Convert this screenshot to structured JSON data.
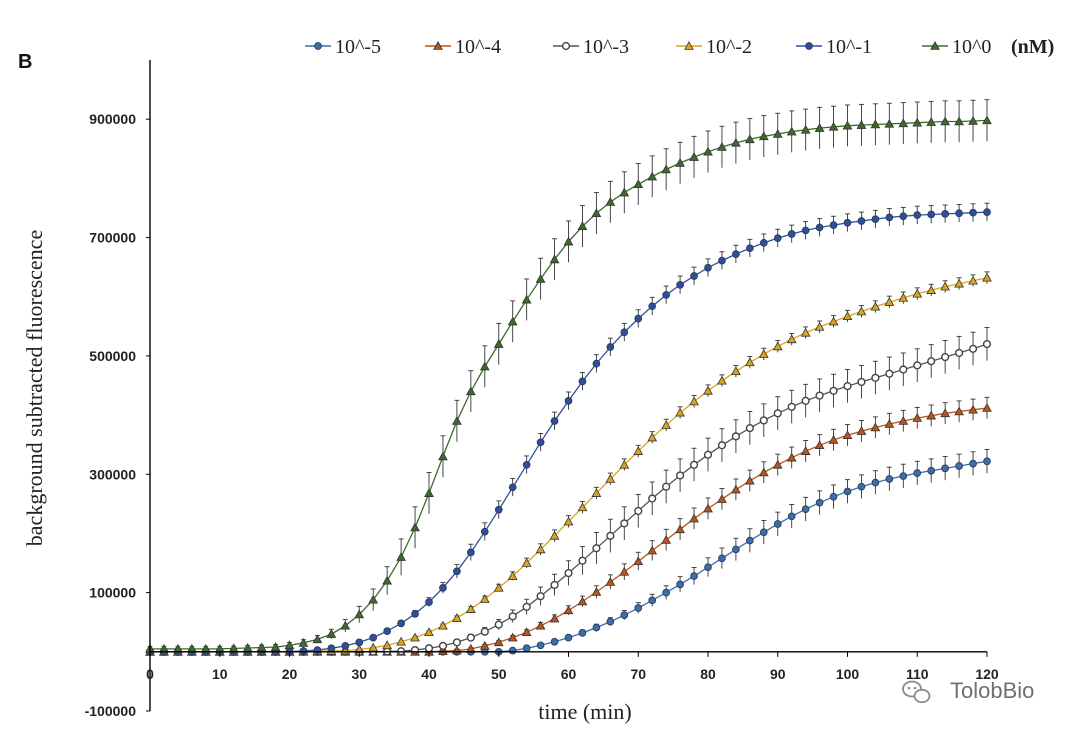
{
  "panel_label": "B",
  "watermark": {
    "text": "TolobBio",
    "icon": "wechat-icon"
  },
  "chart_data": {
    "type": "line",
    "title": "",
    "xlabel": "time (min)",
    "ylabel": "background subtracted fluorescence",
    "legend_unit": "(nM)",
    "legend_position": "top",
    "grid": false,
    "xlim": [
      0,
      120
    ],
    "ylim": [
      -100000,
      1000000
    ],
    "x_ticks": [
      0,
      10,
      20,
      30,
      40,
      50,
      60,
      70,
      80,
      90,
      100,
      110,
      120
    ],
    "x_tick_labels": [
      "0",
      "10",
      "20",
      "30",
      "40",
      "50",
      "60",
      "70",
      "80",
      "90",
      "100",
      "110",
      "120"
    ],
    "y_ticks": [
      -100000,
      100000,
      300000,
      500000,
      700000,
      900000
    ],
    "y_tick_labels": [
      "-100000",
      "100000",
      "300000",
      "500000",
      "700000",
      "900000"
    ],
    "x_step": 2,
    "series": [
      {
        "name": "10^-5",
        "color": "#3c6fa8",
        "marker": "circle",
        "x": [
          0,
          10,
          20,
          30,
          40,
          50,
          52,
          54,
          56,
          58,
          60,
          62,
          64,
          66,
          68,
          70,
          72,
          74,
          76,
          78,
          80,
          82,
          84,
          86,
          88,
          90,
          92,
          94,
          96,
          98,
          100,
          102,
          104,
          106,
          108,
          110,
          112,
          114,
          116,
          118,
          120
        ],
        "y": [
          0,
          0,
          0,
          0,
          0,
          0,
          2000,
          6000,
          11000,
          17000,
          24000,
          32000,
          41000,
          51000,
          62000,
          74000,
          87000,
          100000,
          114000,
          128000,
          143000,
          158000,
          173000,
          188000,
          202000,
          216000,
          229000,
          241000,
          252000,
          262000,
          271000,
          279000,
          286000,
          292000,
          297000,
          302000,
          306000,
          310000,
          314000,
          318000,
          322000
        ],
        "error": 20000
      },
      {
        "name": "10^-4",
        "color": "#b8551f",
        "marker": "triangle",
        "x": [
          0,
          10,
          20,
          30,
          40,
          44,
          46,
          48,
          50,
          52,
          54,
          56,
          58,
          60,
          62,
          64,
          66,
          68,
          70,
          72,
          74,
          76,
          78,
          80,
          82,
          84,
          86,
          88,
          90,
          92,
          94,
          96,
          98,
          100,
          102,
          104,
          106,
          108,
          110,
          112,
          114,
          116,
          118,
          120
        ],
        "y": [
          0,
          0,
          0,
          0,
          0,
          2000,
          5000,
          10000,
          16000,
          24000,
          33000,
          44000,
          56000,
          70000,
          85000,
          101000,
          118000,
          135000,
          153000,
          171000,
          189000,
          207000,
          225000,
          242000,
          258000,
          274000,
          289000,
          303000,
          316000,
          328000,
          339000,
          349000,
          358000,
          366000,
          373000,
          379000,
          385000,
          390000,
          395000,
          399000,
          403000,
          406000,
          409000,
          412000
        ],
        "error": 18000
      },
      {
        "name": "10^-3",
        "color": "#555555",
        "marker": "open-circle",
        "x": [
          0,
          10,
          20,
          30,
          36,
          38,
          40,
          42,
          44,
          46,
          48,
          50,
          52,
          54,
          56,
          58,
          60,
          62,
          64,
          66,
          68,
          70,
          72,
          74,
          76,
          78,
          80,
          82,
          84,
          86,
          88,
          90,
          92,
          94,
          96,
          98,
          100,
          102,
          104,
          106,
          108,
          110,
          112,
          114,
          116,
          118,
          120
        ],
        "y": [
          0,
          0,
          0,
          0,
          1000,
          3000,
          6000,
          10000,
          16000,
          24000,
          34000,
          46000,
          60000,
          76000,
          94000,
          113000,
          133000,
          154000,
          175000,
          196000,
          217000,
          238000,
          259000,
          279000,
          298000,
          316000,
          333000,
          349000,
          364000,
          378000,
          391000,
          403000,
          414000,
          424000,
          433000,
          441000,
          449000,
          456000,
          463000,
          470000,
          477000,
          484000,
          491000,
          498000,
          505000,
          512000,
          520000
        ],
        "error": 28000
      },
      {
        "name": "10^-2",
        "color": "#d9a520",
        "marker": "triangle",
        "x": [
          0,
          10,
          20,
          28,
          30,
          32,
          34,
          36,
          38,
          40,
          42,
          44,
          46,
          48,
          50,
          52,
          54,
          56,
          58,
          60,
          62,
          64,
          66,
          68,
          70,
          72,
          74,
          76,
          78,
          80,
          82,
          84,
          86,
          88,
          90,
          92,
          94,
          96,
          98,
          100,
          102,
          104,
          106,
          108,
          110,
          112,
          114,
          116,
          118,
          120
        ],
        "y": [
          0,
          0,
          0,
          2000,
          4000,
          7000,
          11000,
          17000,
          24000,
          33000,
          44000,
          57000,
          72000,
          89000,
          108000,
          128000,
          150000,
          173000,
          196000,
          220000,
          244000,
          268000,
          292000,
          316000,
          339000,
          362000,
          383000,
          404000,
          423000,
          441000,
          458000,
          474000,
          489000,
          503000,
          516000,
          528000,
          539000,
          549000,
          558000,
          567000,
          575000,
          583000,
          591000,
          598000,
          605000,
          611000,
          617000,
          622000,
          627000,
          632000
        ],
        "error": 10000
      },
      {
        "name": "10^-1",
        "color": "#2f4f9c",
        "marker": "circle",
        "x": [
          0,
          10,
          20,
          24,
          26,
          28,
          30,
          32,
          34,
          36,
          38,
          40,
          42,
          44,
          46,
          48,
          50,
          52,
          54,
          56,
          58,
          60,
          62,
          64,
          66,
          68,
          70,
          72,
          74,
          76,
          78,
          80,
          82,
          84,
          86,
          88,
          90,
          92,
          94,
          96,
          98,
          100,
          102,
          104,
          106,
          108,
          110,
          112,
          114,
          116,
          118,
          120
        ],
        "y": [
          0,
          0,
          0,
          3000,
          6000,
          10000,
          16000,
          24000,
          35000,
          48000,
          64000,
          84000,
          108000,
          136000,
          168000,
          203000,
          240000,
          278000,
          316000,
          354000,
          390000,
          424000,
          457000,
          487000,
          515000,
          540000,
          563000,
          584000,
          603000,
          620000,
          635000,
          649000,
          661000,
          672000,
          682000,
          691000,
          699000,
          706000,
          712000,
          717000,
          721000,
          725000,
          728000,
          731000,
          734000,
          736000,
          738000,
          739000,
          740000,
          741000,
          742000,
          743000
        ],
        "error": 15000
      },
      {
        "name": "10^0",
        "color": "#3e6b2a",
        "marker": "triangle",
        "x": [
          0,
          10,
          18,
          20,
          22,
          24,
          26,
          28,
          30,
          32,
          34,
          36,
          38,
          40,
          42,
          44,
          46,
          48,
          50,
          52,
          54,
          56,
          58,
          60,
          62,
          64,
          66,
          68,
          70,
          72,
          74,
          76,
          78,
          80,
          82,
          84,
          86,
          88,
          90,
          92,
          94,
          96,
          98,
          100,
          102,
          104,
          106,
          108,
          110,
          112,
          114,
          116,
          118,
          120
        ],
        "y": [
          5000,
          5000,
          8000,
          11000,
          15000,
          21000,
          30000,
          44000,
          63000,
          88000,
          120000,
          160000,
          210000,
          268000,
          330000,
          390000,
          440000,
          482000,
          520000,
          558000,
          595000,
          630000,
          663000,
          693000,
          719000,
          741000,
          760000,
          776000,
          790000,
          803000,
          815000,
          826000,
          836000,
          845000,
          853000,
          860000,
          866000,
          871000,
          875000,
          879000,
          882000,
          885000,
          887000,
          889000,
          890000,
          891000,
          892000,
          893000,
          894000,
          895000,
          896000,
          896000,
          897000,
          898000
        ],
        "error": 35000
      }
    ]
  }
}
